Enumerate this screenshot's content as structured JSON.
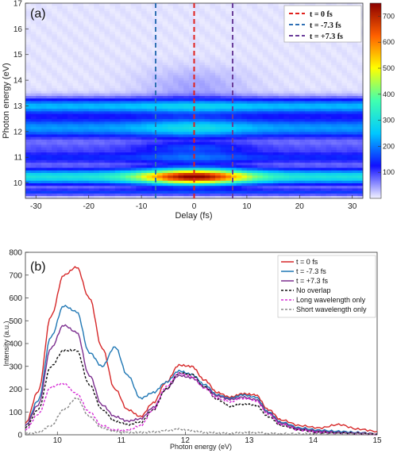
{
  "colors": {
    "t0": "#d62728",
    "tm73": "#1f77b4",
    "tp73": "#7b2d8e",
    "no_overlap": "#111111",
    "long_wl": "#d62fd6",
    "short_wl": "#8a8a8a",
    "colormap": [
      "#f2f2ff",
      "#1010ff",
      "#00c8ff",
      "#40ffb0",
      "#ffff00",
      "#ff6000",
      "#8b0000"
    ]
  },
  "chart_data": [
    {
      "type": "heatmap",
      "panel_label": "(a)",
      "xlabel": "Delay (fs)",
      "ylabel": "Photon energy (eV)",
      "xlim": [
        -32,
        32
      ],
      "ylim": [
        9.4,
        17
      ],
      "x_ticks": [
        "-30",
        "-20",
        "-10",
        "0",
        "10",
        "20",
        "30"
      ],
      "y_ticks": [
        "10",
        "11",
        "12",
        "13",
        "14",
        "15",
        "16",
        "17"
      ],
      "colorbar": {
        "range": [
          0,
          750
        ],
        "ticks": [
          "100",
          "200",
          "300",
          "400",
          "500",
          "600",
          "700"
        ]
      },
      "bands": [
        {
          "center": 9.65,
          "width": 0.09,
          "peak": 140,
          "delay_gain": 0.0
        },
        {
          "center": 10.25,
          "width": 0.22,
          "peak": 300,
          "delay_gain": 1.5
        },
        {
          "center": 11.0,
          "width": 0.18,
          "peak": 130,
          "delay_gain": 0.4
        },
        {
          "center": 11.4,
          "width": 0.15,
          "peak": 60,
          "delay_gain": 1.2
        },
        {
          "center": 12.15,
          "width": 0.3,
          "peak": 210,
          "delay_gain": 0.35
        },
        {
          "center": 13.0,
          "width": 0.22,
          "peak": 230,
          "delay_gain": 0.15
        }
      ],
      "delay_lines": [
        {
          "x": 0,
          "label": "t = 0 fs",
          "color": "#e0201c"
        },
        {
          "x": -7.3,
          "label": "t = -7.3 fs",
          "color": "#2e6fb4"
        },
        {
          "x": 7.3,
          "label": "t = +7.3 fs",
          "color": "#6a3d9a"
        }
      ],
      "legend_position": "top-right"
    },
    {
      "type": "line",
      "panel_label": "(b)",
      "xlabel": "Photon energy (eV)",
      "ylabel": "Intensity (a.u.)",
      "xlim": [
        9.5,
        15
      ],
      "ylim": [
        0,
        800
      ],
      "x_ticks": [
        "10",
        "11",
        "12",
        "13",
        "14",
        "15"
      ],
      "y_ticks": [
        "0",
        "100",
        "200",
        "300",
        "400",
        "500",
        "600",
        "700",
        "800"
      ],
      "legend_position": "top-right",
      "series": [
        {
          "name": "t = 0 fs",
          "style": "solid",
          "color": "#d62728",
          "x": [
            9.5,
            9.7,
            9.9,
            10.1,
            10.3,
            10.5,
            10.7,
            10.9,
            11.1,
            11.3,
            11.5,
            11.7,
            11.9,
            12.1,
            12.3,
            12.5,
            12.7,
            12.9,
            13.1,
            13.3,
            13.5,
            13.8,
            14.1,
            14.4,
            14.7,
            15.0
          ],
          "values": [
            50,
            190,
            520,
            700,
            735,
            600,
            380,
            200,
            110,
            80,
            140,
            230,
            305,
            300,
            240,
            185,
            165,
            180,
            175,
            110,
            65,
            40,
            30,
            45,
            25,
            15
          ]
        },
        {
          "name": "t = -7.3 fs",
          "style": "solid",
          "color": "#1f77b4",
          "x": [
            9.5,
            9.7,
            9.9,
            10.1,
            10.3,
            10.5,
            10.7,
            10.9,
            11.1,
            11.3,
            11.5,
            11.7,
            11.9,
            12.1,
            12.3,
            12.5,
            12.7,
            12.9,
            13.1,
            13.3,
            13.5,
            13.8,
            14.1,
            14.4,
            14.7,
            15.0
          ],
          "values": [
            40,
            150,
            430,
            565,
            540,
            360,
            300,
            385,
            260,
            160,
            185,
            230,
            280,
            265,
            220,
            175,
            160,
            175,
            165,
            100,
            55,
            30,
            20,
            15,
            10,
            5
          ]
        },
        {
          "name": "t = +7.3 fs",
          "style": "solid",
          "color": "#7b2d8e",
          "x": [
            9.5,
            9.7,
            9.9,
            10.1,
            10.3,
            10.5,
            10.7,
            10.9,
            11.1,
            11.3,
            11.5,
            11.7,
            11.9,
            12.1,
            12.3,
            12.5,
            12.7,
            12.9,
            13.1,
            13.3,
            13.5,
            13.8,
            14.1,
            14.4,
            14.7,
            15.0
          ],
          "values": [
            40,
            130,
            380,
            480,
            450,
            260,
            130,
            80,
            60,
            70,
            120,
            200,
            260,
            250,
            210,
            170,
            155,
            165,
            155,
            95,
            50,
            25,
            15,
            10,
            8,
            5
          ]
        },
        {
          "name": "No overlap",
          "style": "dashed",
          "color": "#111111",
          "x": [
            9.5,
            9.7,
            9.9,
            10.1,
            10.3,
            10.5,
            10.7,
            10.9,
            11.1,
            11.3,
            11.5,
            11.7,
            11.9,
            12.1,
            12.3,
            12.5,
            12.7,
            12.9,
            13.1,
            13.3,
            13.5,
            13.8,
            14.1,
            14.4,
            14.7,
            15.0
          ],
          "values": [
            30,
            110,
            300,
            370,
            370,
            220,
            110,
            60,
            45,
            55,
            110,
            200,
            270,
            265,
            210,
            155,
            125,
            135,
            130,
            80,
            40,
            20,
            10,
            8,
            5,
            3
          ]
        },
        {
          "name": "Long wavelength only",
          "style": "dashed",
          "color": "#d62fd6",
          "x": [
            9.5,
            9.7,
            9.9,
            10.1,
            10.3,
            10.5,
            10.7,
            10.9,
            11.1,
            11.3,
            11.5,
            11.7,
            11.9,
            12.1,
            12.3,
            12.5,
            12.7,
            12.9,
            13.1,
            13.3,
            13.5,
            13.8,
            14.1,
            14.4,
            14.7,
            15.0
          ],
          "values": [
            20,
            90,
            210,
            225,
            180,
            100,
            40,
            20,
            20,
            40,
            110,
            210,
            270,
            255,
            205,
            160,
            145,
            160,
            150,
            90,
            45,
            20,
            10,
            6,
            4,
            2
          ]
        },
        {
          "name": "Short wavelength only",
          "style": "dashed",
          "color": "#8a8a8a",
          "x": [
            9.5,
            9.7,
            9.9,
            10.1,
            10.3,
            10.5,
            10.7,
            10.9,
            11.1,
            11.3,
            11.5,
            11.7,
            11.9,
            12.1,
            12.3,
            12.5,
            12.7,
            12.9,
            13.1,
            13.3,
            13.5,
            13.8,
            14.1,
            14.4,
            14.7,
            15.0
          ],
          "values": [
            5,
            10,
            40,
            110,
            160,
            80,
            30,
            15,
            10,
            10,
            12,
            18,
            25,
            18,
            10,
            8,
            6,
            10,
            10,
            6,
            5,
            5,
            5,
            5,
            5,
            5
          ]
        }
      ]
    }
  ]
}
